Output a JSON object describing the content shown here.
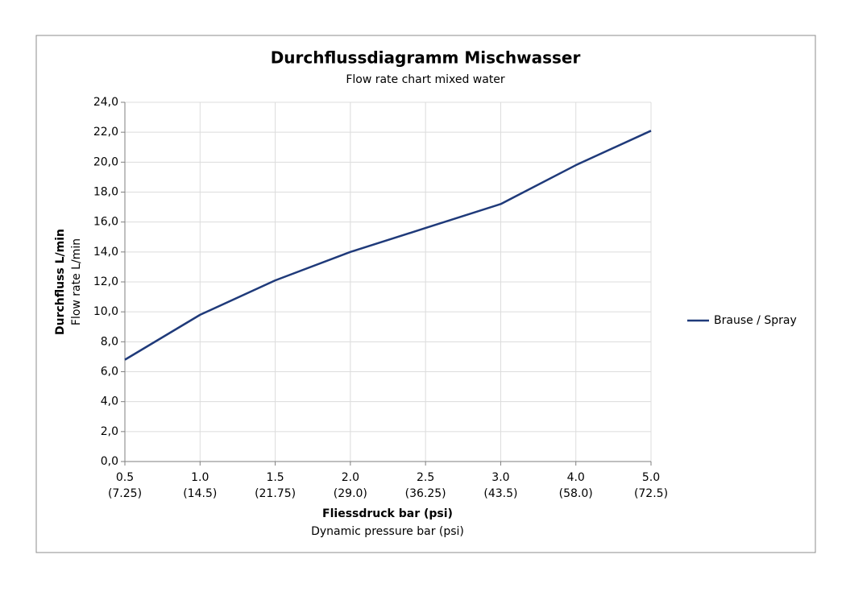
{
  "chart_data": {
    "type": "line",
    "title": "Durchflussdiagramm Mischwasser",
    "subtitle": "Flow rate chart mixed water",
    "y_label": "Durchfluss L/min",
    "y_sublabel": "Flow rate L/min",
    "x_label": "Fliessdruck bar (psi)",
    "x_sublabel": "Dynamic pressure bar (psi)",
    "categories": [
      "0.5",
      "1.0",
      "1.5",
      "2.0",
      "2.5",
      "3.0",
      "4.0",
      "5.0"
    ],
    "category_sublabels": [
      "(7.25)",
      "(14.5)",
      "(21.75)",
      "(29.0)",
      "(36.25)",
      "(43.5)",
      "(58.0)",
      "(72.5)"
    ],
    "series": [
      {
        "name": "Brause / Spray",
        "color": "#1f3a7a",
        "values": [
          6.8,
          9.8,
          12.1,
          14.0,
          15.6,
          17.2,
          19.8,
          22.1
        ]
      }
    ],
    "ylim": [
      0,
      24
    ],
    "yticks": [
      {
        "value": 0,
        "label": "0,0"
      },
      {
        "value": 2,
        "label": "2,0"
      },
      {
        "value": 4,
        "label": "4,0"
      },
      {
        "value": 6,
        "label": "6,0"
      },
      {
        "value": 8,
        "label": "8,0"
      },
      {
        "value": 10,
        "label": "10,0"
      },
      {
        "value": 12,
        "label": "12,0"
      },
      {
        "value": 14,
        "label": "14,0"
      },
      {
        "value": 16,
        "label": "16,0"
      },
      {
        "value": 18,
        "label": "18,0"
      },
      {
        "value": 20,
        "label": "20,0"
      },
      {
        "value": 22,
        "label": "22,0"
      },
      {
        "value": 24,
        "label": "24,0"
      }
    ],
    "grid": true,
    "legend_position": "right"
  }
}
